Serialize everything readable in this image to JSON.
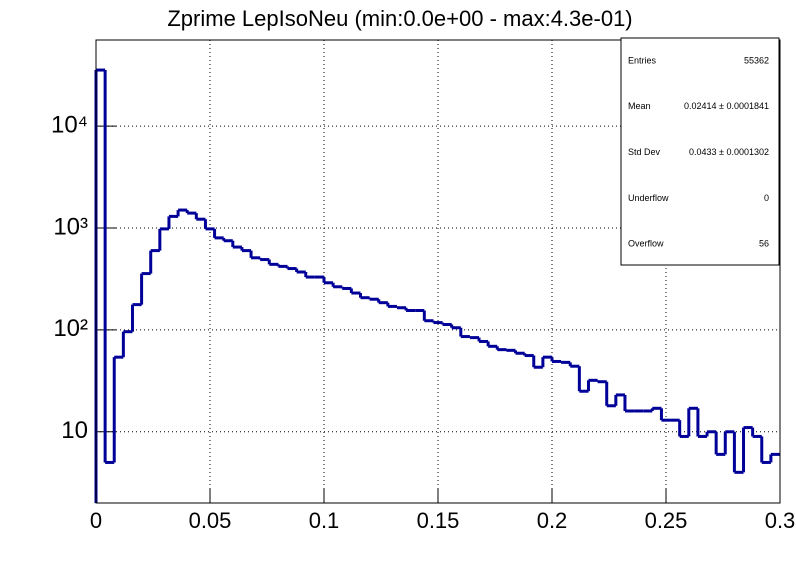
{
  "chart_data": {
    "type": "histogram",
    "title": "Zprime LepIsoNeu (min:0.0e+00 - max:4.3e-01)",
    "bins": [
      0,
      0.004,
      0.008,
      0.012,
      0.016,
      0.02,
      0.024,
      0.028,
      0.032,
      0.036,
      0.04,
      0.044,
      0.048,
      0.052,
      0.056,
      0.06,
      0.064,
      0.068,
      0.072,
      0.076,
      0.08,
      0.084,
      0.088,
      0.092,
      0.096,
      0.1,
      0.104,
      0.108,
      0.112,
      0.116,
      0.12,
      0.124,
      0.128,
      0.132,
      0.136,
      0.14,
      0.144,
      0.148,
      0.152,
      0.156,
      0.16,
      0.164,
      0.168,
      0.172,
      0.176,
      0.18,
      0.184,
      0.188,
      0.192,
      0.196,
      0.2,
      0.204,
      0.208,
      0.212,
      0.216,
      0.22,
      0.224,
      0.228,
      0.232,
      0.236,
      0.24,
      0.244,
      0.248,
      0.252,
      0.256,
      0.26,
      0.264,
      0.268,
      0.272,
      0.276,
      0.28,
      0.284,
      0.288,
      0.292,
      0.296,
      0.3
    ],
    "values": [
      35500,
      5,
      54,
      96,
      177,
      357,
      600,
      980,
      1300,
      1500,
      1400,
      1220,
      980,
      800,
      750,
      650,
      600,
      510,
      490,
      440,
      420,
      400,
      370,
      330,
      330,
      290,
      265,
      255,
      230,
      207,
      200,
      185,
      170,
      165,
      155,
      155,
      123,
      118,
      113,
      105,
      86,
      84,
      77,
      69,
      64,
      63,
      59,
      56,
      43,
      54,
      49,
      48,
      44,
      25,
      32,
      31,
      18,
      23,
      16,
      16,
      16,
      17,
      13,
      13,
      9,
      17,
      9,
      10,
      6,
      10,
      4,
      11,
      9,
      5,
      6
    ],
    "color": "#000099",
    "xlim": [
      0,
      0.3
    ],
    "xticks": [
      0,
      0.05,
      0.1,
      0.15,
      0.2,
      0.25,
      0.3
    ],
    "ylim": [
      2,
      70000
    ],
    "ylog": true,
    "yticks": [
      10,
      {
        "value": 100,
        "label": "10²"
      },
      {
        "value": 1000,
        "label": "10³"
      },
      {
        "value": 10000,
        "label": "10⁴"
      }
    ],
    "grid": true,
    "stats": [
      [
        "Entries",
        "55362"
      ],
      [
        "Mean",
        "0.02414  ± 0.0001841"
      ],
      [
        "Std Dev",
        "0.0433  ± 0.0001302"
      ],
      [
        "Underflow",
        "0"
      ],
      [
        "Overflow",
        "56"
      ]
    ]
  }
}
